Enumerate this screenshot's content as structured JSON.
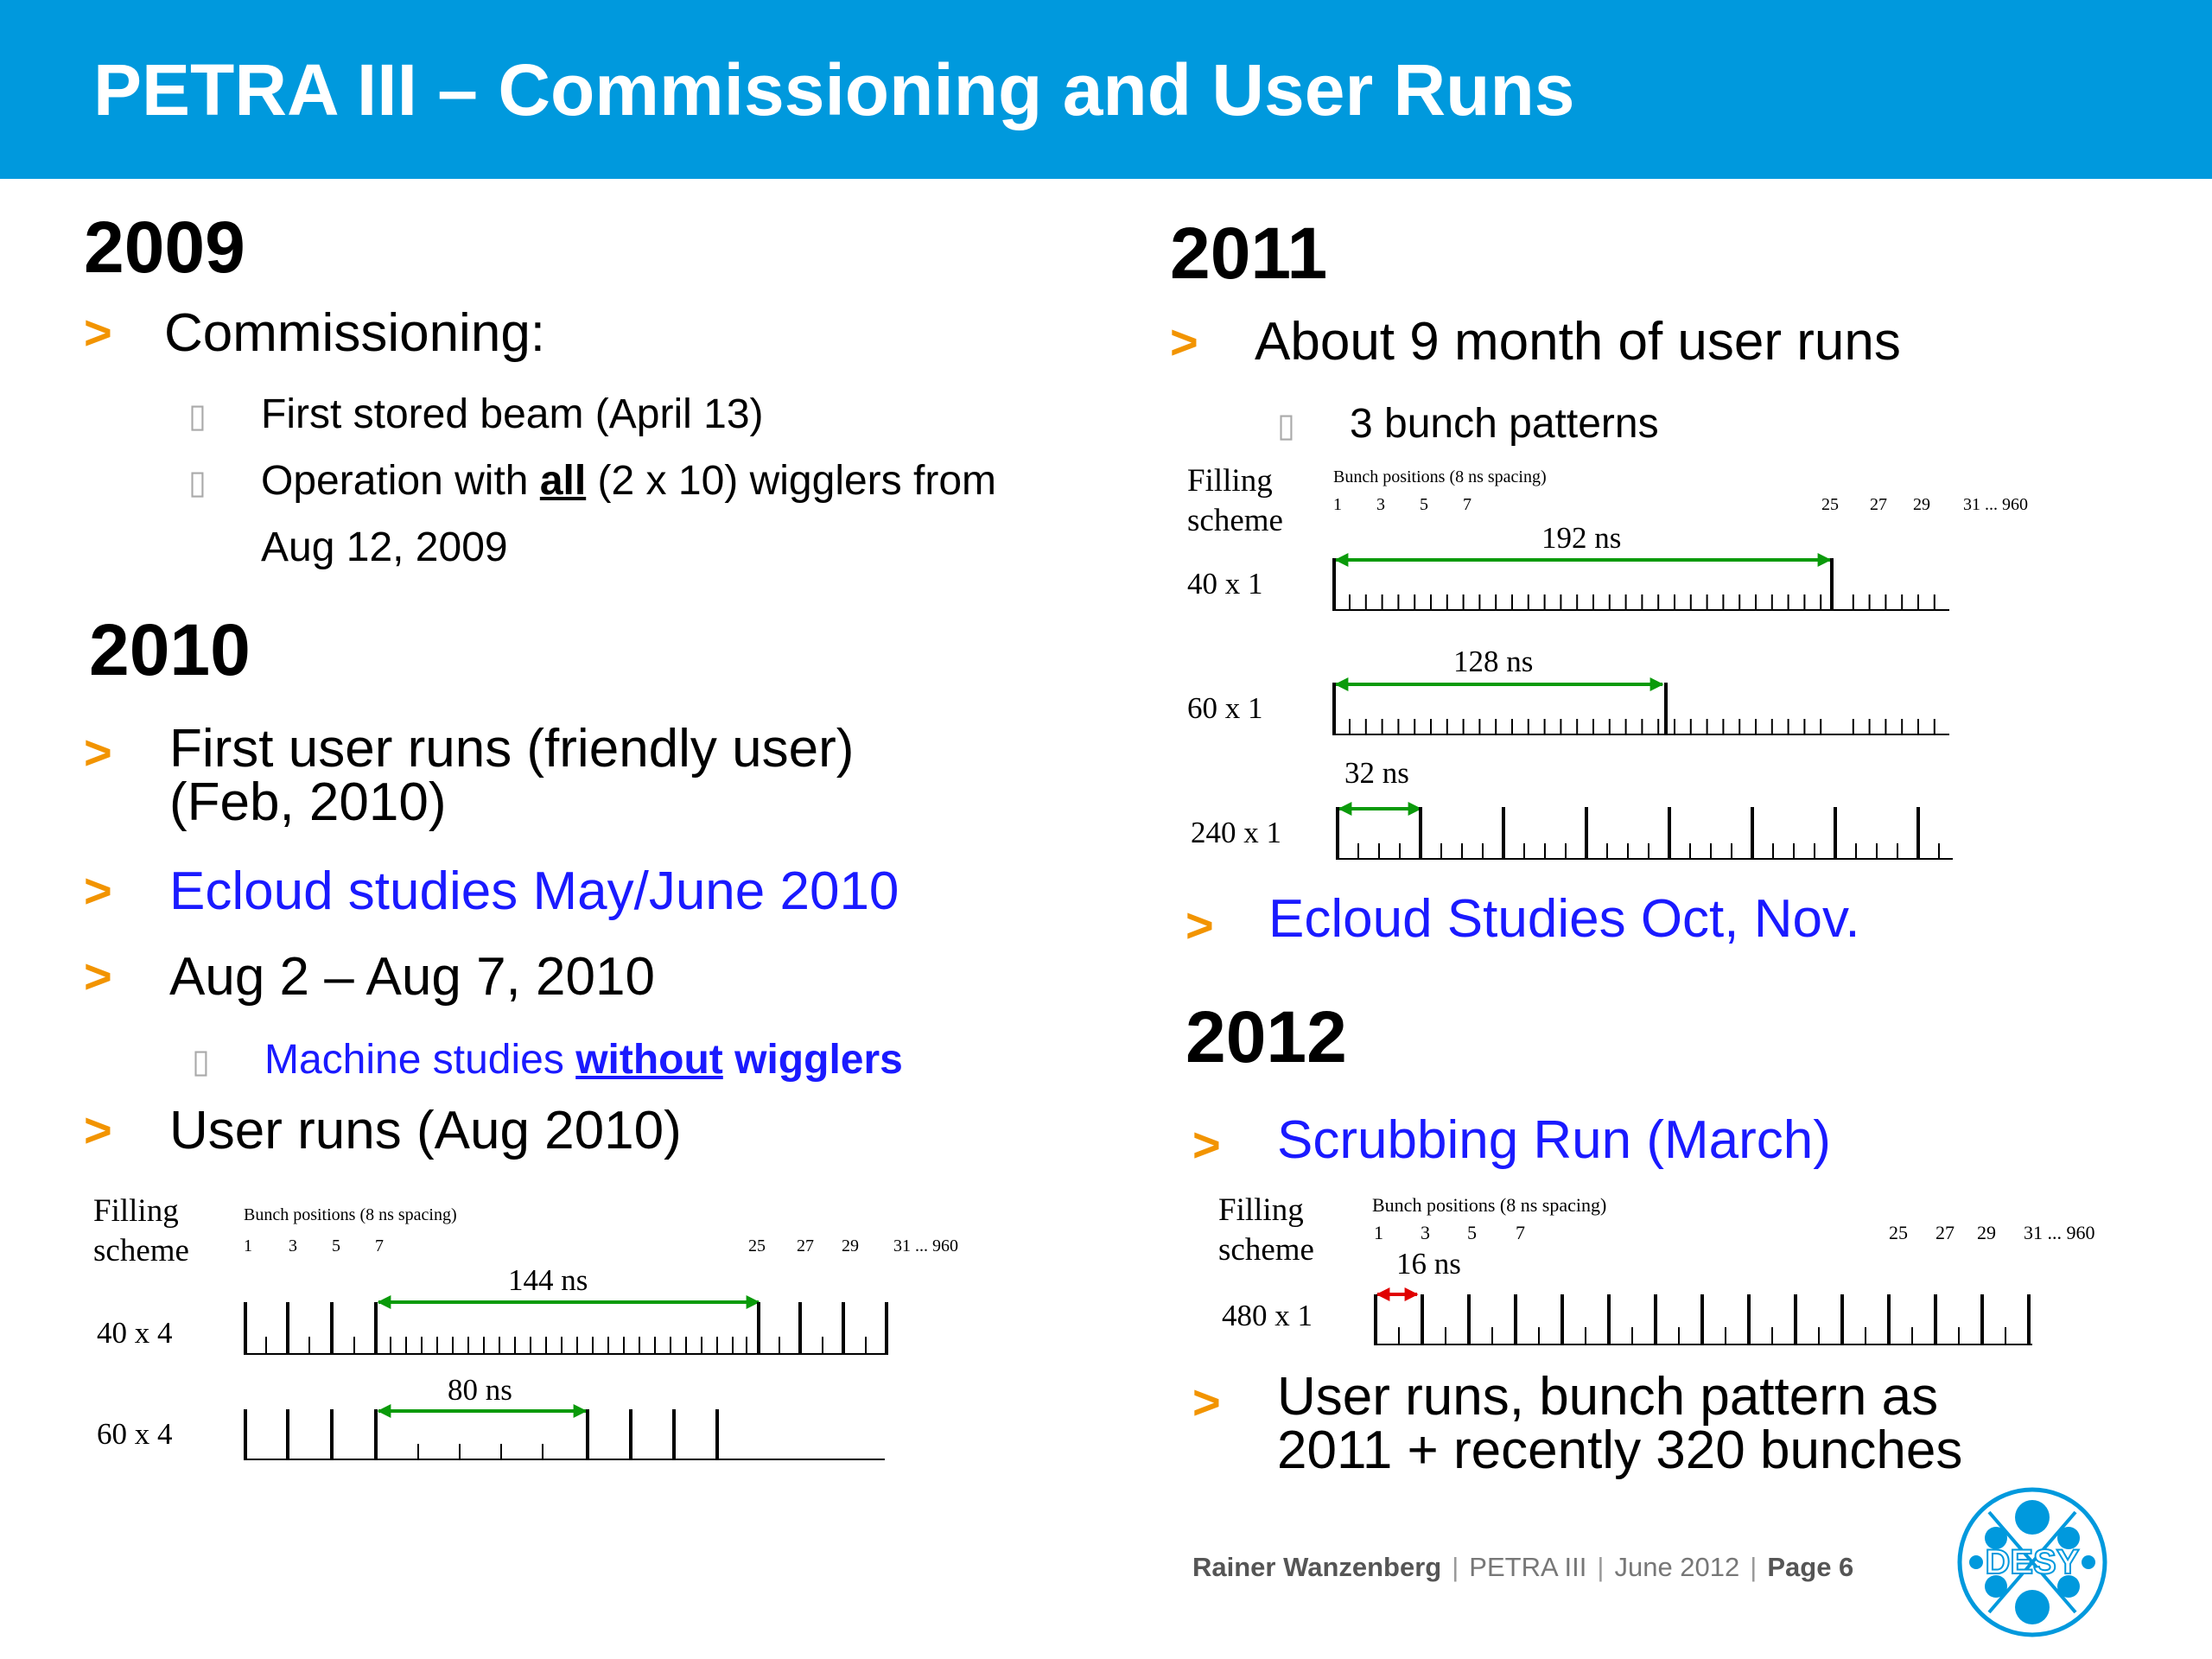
{
  "header": {
    "title": "PETRA III – Commissioning and User Runs"
  },
  "y2009": {
    "year": "2009",
    "marker": ">",
    "item1": "Commissioning:",
    "sub1": "First stored beam (April 13)",
    "sub2a": "Operation with ",
    "sub2b": "all",
    "sub2c": " (2 x 10) wigglers from",
    "sub2d": "Aug 12, 2009"
  },
  "y2010": {
    "year": "2010",
    "item1a": "First user runs (friendly user)",
    "item1b": "(Feb, 2010)",
    "item2": "Ecloud studies May/June 2010",
    "item3": "Aug 2 – Aug 7, 2010",
    "sub1a": "Machine studies ",
    "sub1b": "without",
    "sub1c": " wigglers",
    "item4": "User runs (Aug 2010)"
  },
  "y2011": {
    "year": "2011",
    "item1": "About 9 month of user runs",
    "sub1": "3 bunch patterns",
    "item2": "Ecloud Studies Oct, Nov."
  },
  "y2012": {
    "year": "2012",
    "item1": "Scrubbing Run (March)",
    "item2a": "User runs, bunch pattern as",
    "item2b": "2011 + recently 320 bunches"
  },
  "diagram_common": {
    "filling": "Filling",
    "scheme": "scheme",
    "bunch_positions": "Bunch positions (8 ns spacing)",
    "ticks_left": [
      "1",
      "3",
      "5",
      "7"
    ],
    "ticks_right": [
      "25",
      "27",
      "29",
      "31 ... 960"
    ]
  },
  "diagram_2010": {
    "row1_label": "40 x 4",
    "row1_span": "144 ns",
    "row2_label": "60 x 4",
    "row2_span": "80 ns"
  },
  "diagram_2011": {
    "row1_label": "40 x 1",
    "row1_span": "192 ns",
    "row2_label": "60 x 1",
    "row2_span": "128 ns",
    "row3_label": "240 x 1",
    "row3_span": "32 ns"
  },
  "diagram_2012": {
    "row1_label": "480 x 1",
    "row1_span": "16 ns"
  },
  "footer": {
    "author": "Rainer Wanzenberg",
    "sep": "|",
    "project": "PETRA III",
    "date": "June  2012",
    "page": "Page 6"
  },
  "logo": {
    "text": "DESY"
  },
  "colors": {
    "header": "#0099dd",
    "arrow": "#f29400",
    "link": "#1a1aff",
    "span": "#0a9a0a",
    "span_red": "#e00000"
  }
}
